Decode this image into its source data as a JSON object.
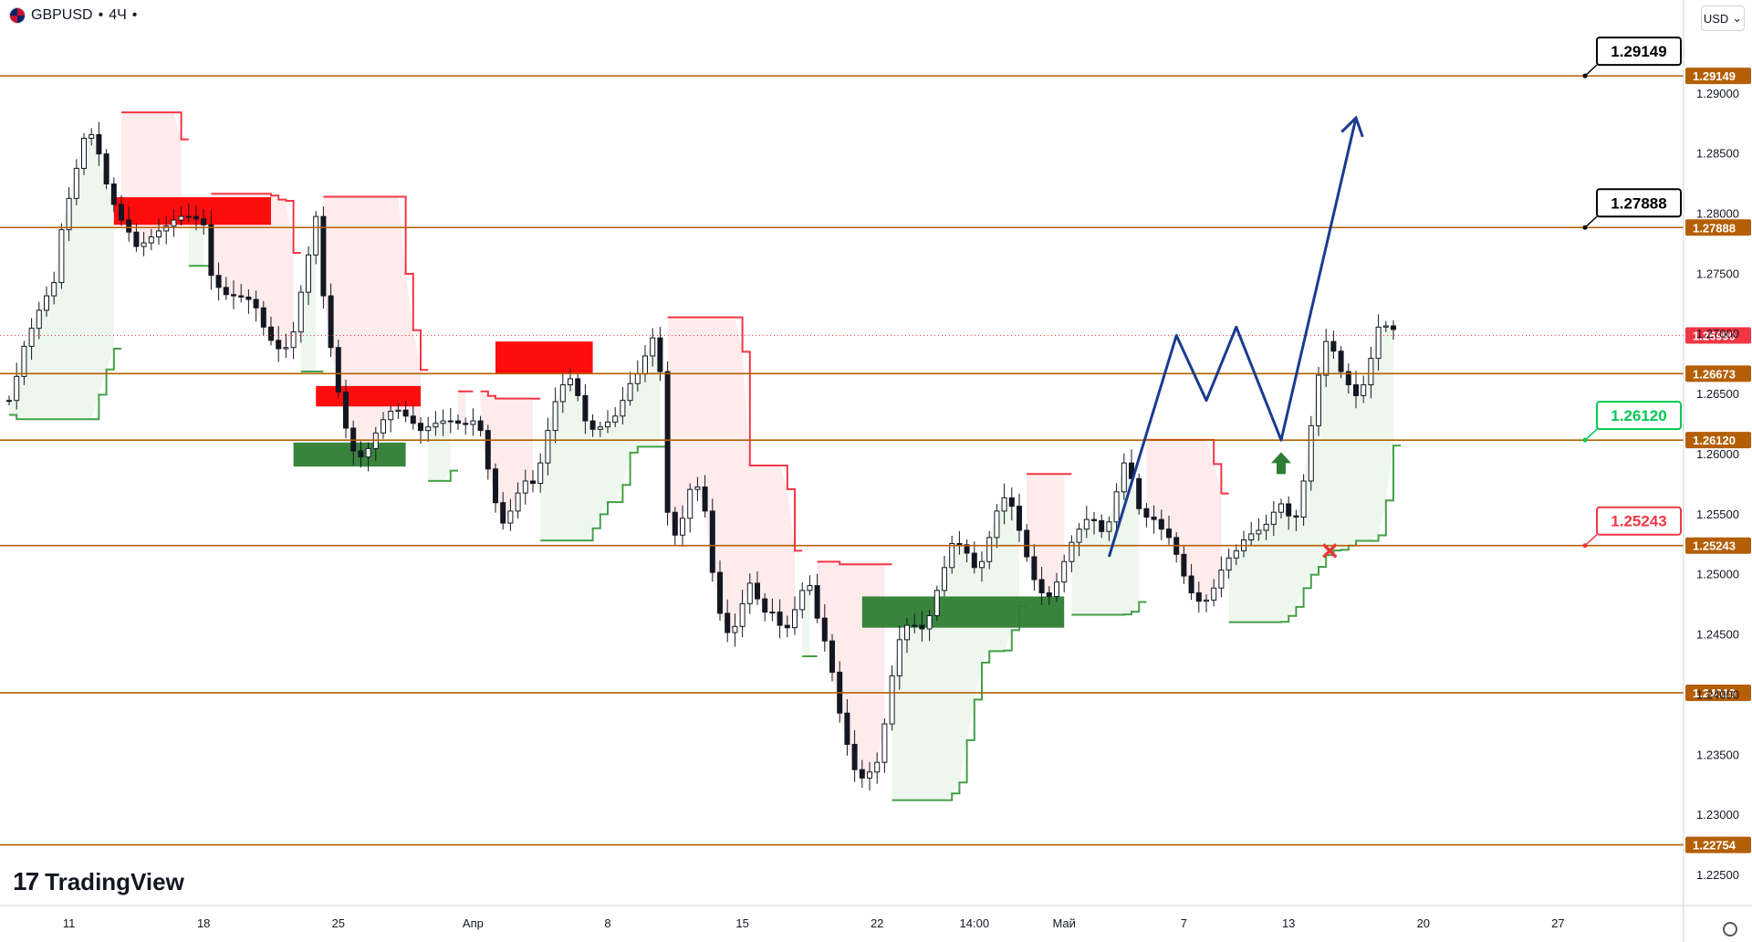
{
  "header": {
    "symbol": "GBPUSD",
    "timeframe": "4Ч",
    "currency": "USD"
  },
  "brand": "TradingView",
  "chart_data": {
    "type": "candlestick",
    "yrange": [
      1.2225,
      1.2978
    ],
    "y_ticks": [
      "1.29000",
      "1.28500",
      "1.28000",
      "1.27500",
      "1.27000",
      "1.26500",
      "1.26000",
      "1.25500",
      "1.25000",
      "1.24500",
      "1.24000",
      "1.23500",
      "1.23000",
      "1.22500"
    ],
    "x_ticks": [
      {
        "label": "11",
        "i": 8
      },
      {
        "label": "18",
        "i": 26
      },
      {
        "label": "25",
        "i": 44
      },
      {
        "label": "Апр",
        "i": 62
      },
      {
        "label": "8",
        "i": 80
      },
      {
        "label": "15",
        "i": 98
      },
      {
        "label": "22",
        "i": 116
      },
      {
        "label": "14:00",
        "i": 129
      },
      {
        "label": "Май",
        "i": 141
      },
      {
        "label": "7",
        "i": 157
      },
      {
        "label": "13",
        "i": 171
      },
      {
        "label": "20",
        "i": 189
      },
      {
        "label": "27",
        "i": 207
      }
    ],
    "levels": [
      {
        "value": 1.29149,
        "label": "1.29149"
      },
      {
        "value": 1.27888,
        "label": "1.27888"
      },
      {
        "value": 1.26673,
        "label": "1.26673"
      },
      {
        "value": 1.2612,
        "label": "1.26120"
      },
      {
        "value": 1.25243,
        "label": "1.25243"
      },
      {
        "value": 1.24019,
        "label": "1.24019"
      },
      {
        "value": 1.22754,
        "label": "1.22754"
      }
    ],
    "current_price": {
      "value": 1.2699,
      "label": "1.26990"
    },
    "callouts": [
      {
        "label": "1.29149",
        "value": 1.29149,
        "color": "#000000"
      },
      {
        "label": "1.27888",
        "value": 1.27888,
        "color": "#000000"
      },
      {
        "label": "1.26120",
        "value": 1.2612,
        "color": "#00c853"
      },
      {
        "label": "1.25243",
        "value": 1.25243,
        "color": "#f23645"
      }
    ],
    "closes": [
      1.2645,
      1.2665,
      1.269,
      1.2705,
      1.272,
      1.2732,
      1.2743,
      1.2787,
      1.2813,
      1.2838,
      1.2863,
      1.2866,
      1.285,
      1.2825,
      1.2808,
      1.2795,
      1.2785,
      1.2773,
      1.2776,
      1.2781,
      1.2786,
      1.279,
      1.2795,
      1.2798,
      1.2798,
      1.2796,
      1.2791,
      1.2749,
      1.2739,
      1.2733,
      1.2732,
      1.2731,
      1.2729,
      1.2722,
      1.2706,
      1.2695,
      1.2688,
      1.2689,
      1.2702,
      1.2735,
      1.2766,
      1.2798,
      1.2732,
      1.2689,
      1.2652,
      1.2622,
      1.2603,
      1.2598,
      1.2605,
      1.2618,
      1.2629,
      1.2636,
      1.2637,
      1.2632,
      1.2626,
      1.262,
      1.2623,
      1.2626,
      1.2628,
      1.2628,
      1.2626,
      1.2625,
      1.2628,
      1.262,
      1.2588,
      1.256,
      1.2543,
      1.2553,
      1.2568,
      1.2578,
      1.2576,
      1.2593,
      1.262,
      1.2644,
      1.2658,
      1.2663,
      1.2649,
      1.2628,
      1.2621,
      1.2623,
      1.2627,
      1.2632,
      1.2645,
      1.2659,
      1.2667,
      1.2682,
      1.2697,
      1.2669,
      1.2552,
      1.2533,
      1.2547,
      1.2571,
      1.2573,
      1.2553,
      1.2502,
      1.2468,
      1.2452,
      1.2457,
      1.2476,
      1.2493,
      1.248,
      1.2469,
      1.2469,
      1.2458,
      1.2456,
      1.2471,
      1.2487,
      1.2491,
      1.2464,
      1.2445,
      1.2419,
      1.2385,
      1.2359,
      1.2338,
      1.2331,
      1.2336,
      1.2344,
      1.2376,
      1.2416,
      1.2446,
      1.2458,
      1.2458,
      1.2455,
      1.2466,
      1.2487,
      1.2506,
      1.2526,
      1.2525,
      1.2518,
      1.2506,
      1.2511,
      1.2531,
      1.2553,
      1.2564,
      1.2557,
      1.2537,
      1.2515,
      1.2496,
      1.2485,
      1.2482,
      1.2494,
      1.2511,
      1.2527,
      1.2538,
      1.2546,
      1.2545,
      1.2536,
      1.2544,
      1.2569,
      1.2593,
      1.258,
      1.2555,
      1.2548,
      1.2546,
      1.2538,
      1.2531,
      1.2517,
      1.2499,
      1.2485,
      1.2478,
      1.2479,
      1.2489,
      1.2504,
      1.2514,
      1.252,
      1.2529,
      1.2534,
      1.2537,
      1.2542,
      1.2552,
      1.2559,
      1.2549,
      1.2548,
      1.2578,
      1.2624,
      1.2666,
      1.2694,
      1.2686,
      1.2669,
      1.2658,
      1.2649,
      1.2658,
      1.268,
      1.2706,
      1.2707,
      1.2704
    ],
    "zones": [
      {
        "color": "#ff0000",
        "i0": 14,
        "i1": 35,
        "y0": 1.2814,
        "y1": 1.2791
      },
      {
        "color": "#ff0000",
        "i0": 41,
        "i1": 55,
        "y0": 1.2657,
        "y1": 1.264
      },
      {
        "color": "#2e7d32",
        "i0": 38,
        "i1": 53,
        "y0": 1.261,
        "y1": 1.259
      },
      {
        "color": "#ff0000",
        "i0": 65,
        "i1": 78,
        "y0": 1.2694,
        "y1": 1.2667
      },
      {
        "color": "#2e7d32",
        "i0": 114,
        "i1": 141,
        "y0": 1.2482,
        "y1": 1.2456
      }
    ],
    "projection": [
      {
        "i": 147,
        "v": 1.2515
      },
      {
        "i": 156,
        "v": 1.2699
      },
      {
        "i": 160,
        "v": 1.2645
      },
      {
        "i": 164,
        "v": 1.2706
      },
      {
        "i": 170,
        "v": 1.2612
      },
      {
        "i": 180,
        "v": 1.288
      }
    ]
  }
}
